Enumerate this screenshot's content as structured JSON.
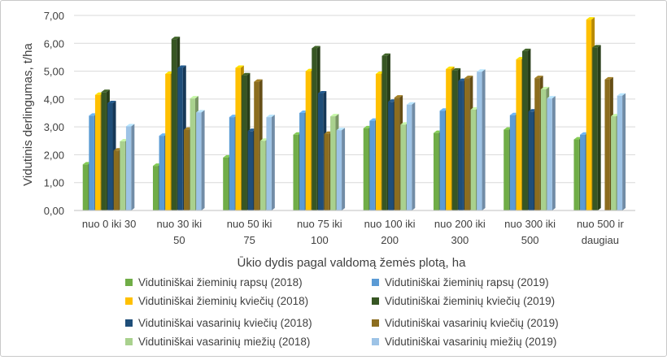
{
  "chart_data": {
    "type": "bar",
    "style": "3d-clustered-column",
    "title": "",
    "xlabel": "Ūkio dydis pagal valdomą žemės plotą, ha",
    "ylabel": "Vidutinis derlingumas, t/ha",
    "ylim": [
      0,
      7
    ],
    "yticks": [
      "0,00",
      "1,00",
      "2,00",
      "3,00",
      "4,00",
      "5,00",
      "6,00",
      "7,00"
    ],
    "grid": true,
    "legend_position": "bottom",
    "categories": [
      [
        "nuo 0 iki 30"
      ],
      [
        "nuo 30 iki",
        "50"
      ],
      [
        "nuo 50 iki",
        "75"
      ],
      [
        "nuo 75 iki",
        "100"
      ],
      [
        "nuo 100 iki",
        "200"
      ],
      [
        "nuo 200 iki",
        "300"
      ],
      [
        "nuo 300 iki",
        "500"
      ],
      [
        "nuo 500 ir",
        "daugiau"
      ]
    ],
    "series": [
      {
        "name": "Vidutiniškai žieminių rapsų (2018)",
        "color": "#70ad47",
        "values": [
          1.65,
          1.6,
          1.9,
          2.72,
          2.95,
          2.78,
          2.9,
          2.55
        ]
      },
      {
        "name": "Vidutiniškai žieminių rapsų (2019)",
        "color": "#5b9bd5",
        "values": [
          3.4,
          2.68,
          3.35,
          3.5,
          3.22,
          3.58,
          3.42,
          2.72
        ]
      },
      {
        "name": "Vidutiniškai žieminių kviečių (2018)",
        "color": "#ffc000",
        "values": [
          4.15,
          4.9,
          5.12,
          5.0,
          4.9,
          5.08,
          5.42,
          6.85
        ]
      },
      {
        "name": "Vidutiniškai žieminių kviečių (2019)",
        "color": "#375623",
        "values": [
          4.25,
          6.15,
          4.85,
          5.82,
          5.55,
          5.02,
          5.72,
          5.85
        ]
      },
      {
        "name": "Vidutiniškai vasarinių kviečių (2018)",
        "color": "#1f4e79",
        "values": [
          3.85,
          5.12,
          2.85,
          4.2,
          3.9,
          4.65,
          3.55,
          null
        ]
      },
      {
        "name": "Vidutiniškai vasarinių kviečių (2019)",
        "color": "#8c6d1f",
        "values": [
          2.15,
          2.9,
          4.62,
          2.75,
          4.05,
          4.75,
          4.75,
          4.7
        ]
      },
      {
        "name": "Vidutiniškai vasarinių miežių (2018)",
        "color": "#a9d18e",
        "values": [
          2.48,
          4.02,
          2.5,
          3.38,
          3.08,
          3.62,
          4.35,
          3.38
        ]
      },
      {
        "name": "Vidutiniškai vasarinių miežių (2019)",
        "color": "#9dc3e6",
        "values": [
          3.02,
          3.52,
          3.35,
          2.88,
          3.8,
          4.98,
          4.02,
          4.12
        ]
      }
    ]
  }
}
